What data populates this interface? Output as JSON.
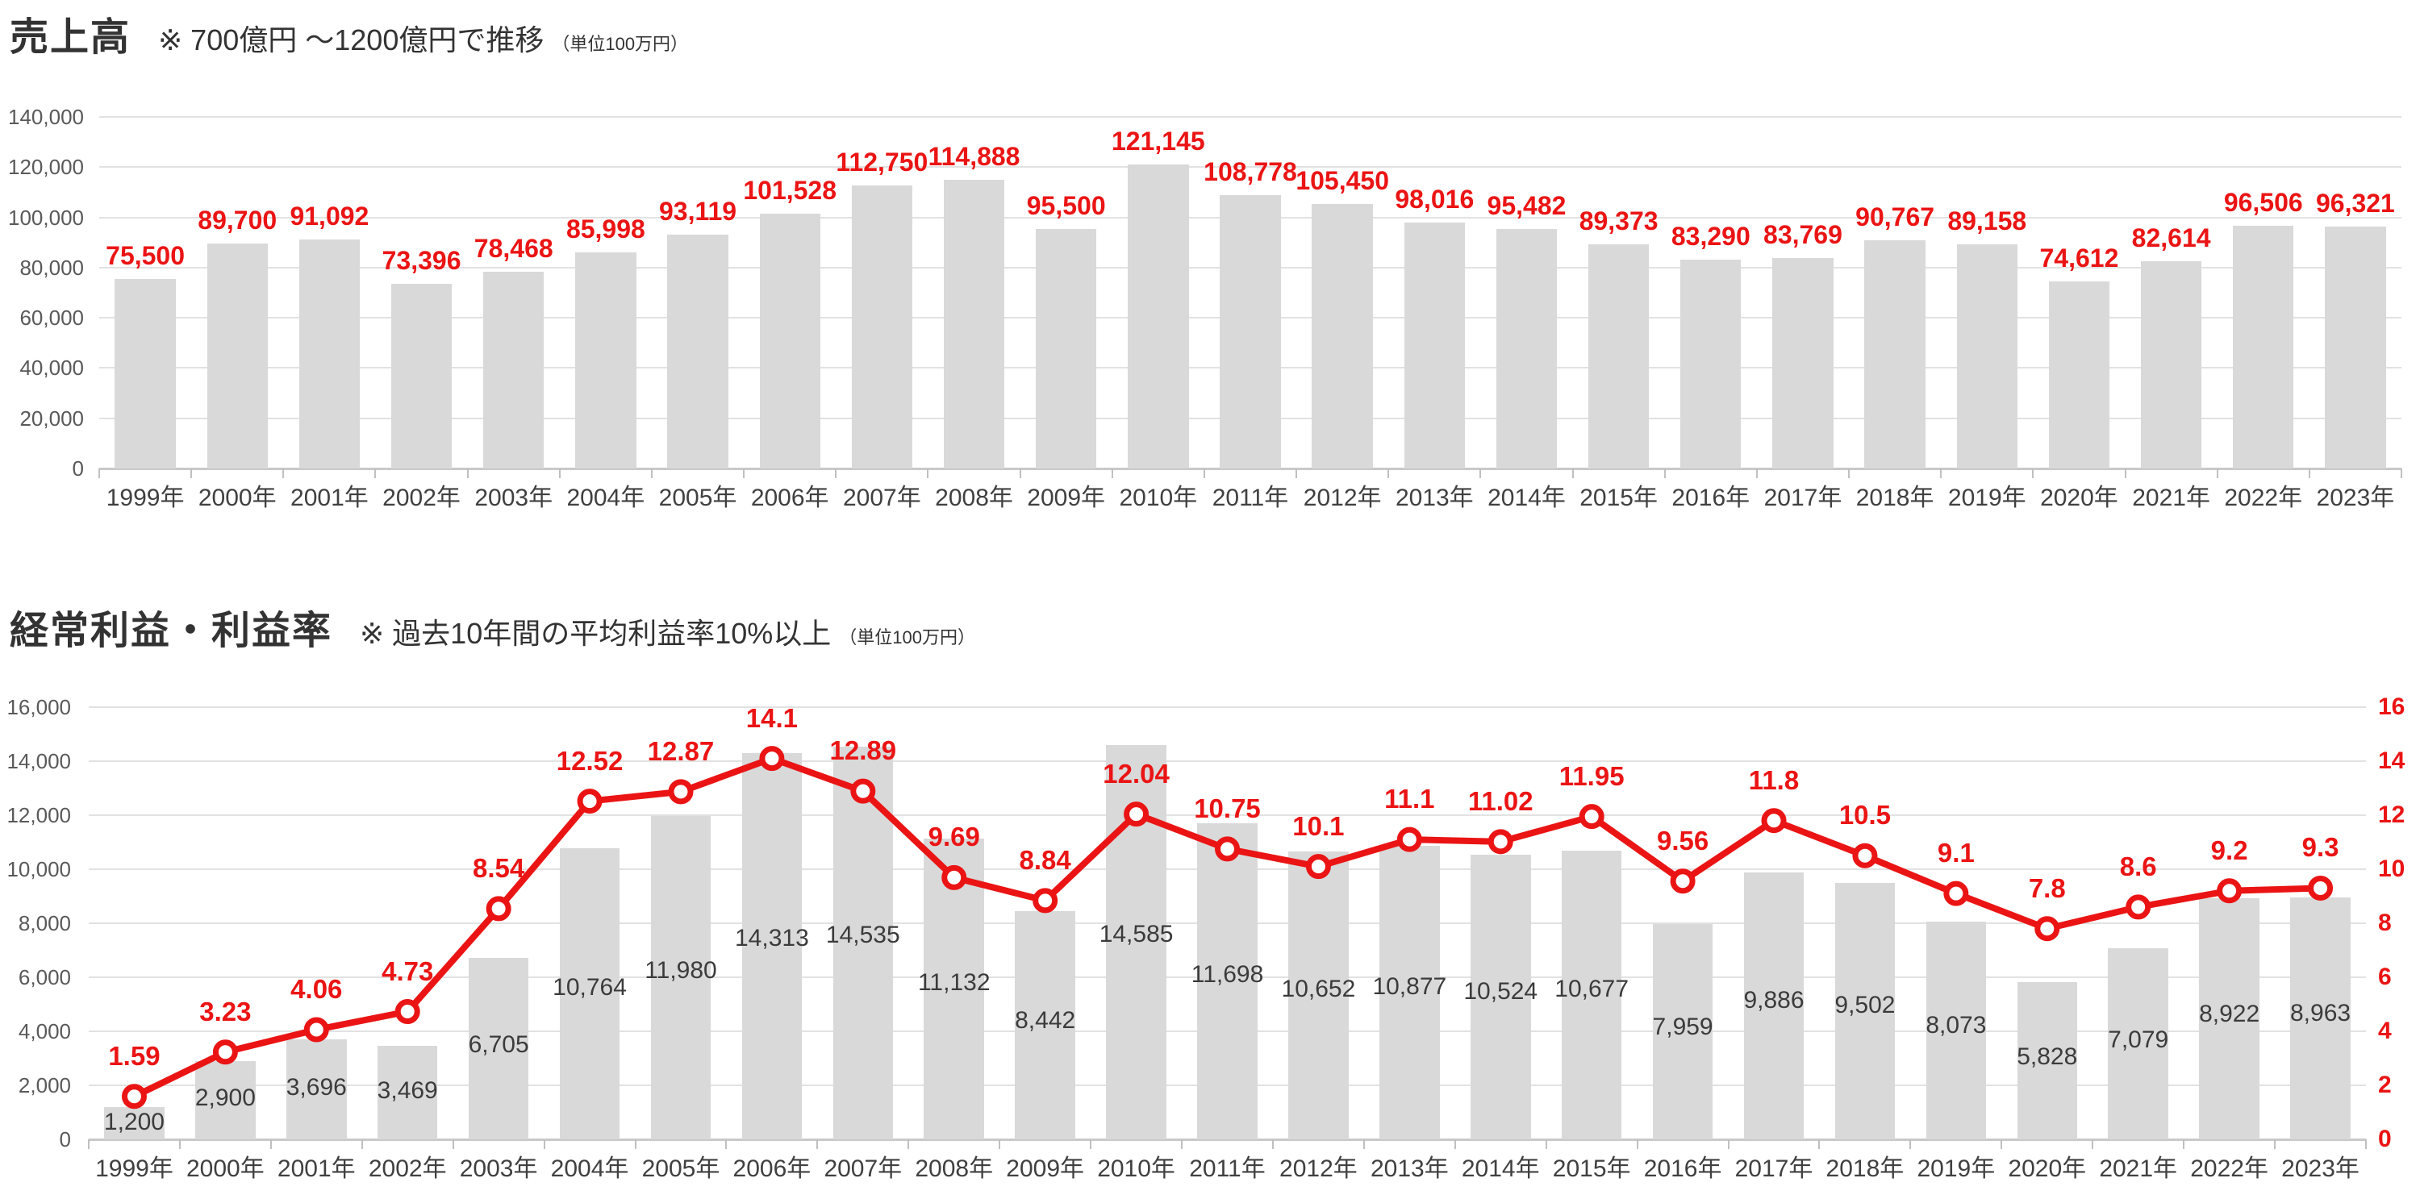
{
  "page": {
    "background": "#ffffff"
  },
  "colors": {
    "bar": "#d9d9d9",
    "accent_red": "#eb1414",
    "axis_text": "#595959",
    "x_label_text": "#404040",
    "bar_label_text": "#3b3b3b",
    "title_text": "#333333",
    "gridline": "#e2e2e2",
    "baseline": "#c9c9c9",
    "tick": "#c0c0c0",
    "marker_fill": "#ffffff"
  },
  "chart_data": [
    {
      "type": "bar",
      "title": "売上高",
      "subtitle": "※ 700億円 ～1200億円で推移",
      "unit_note": "（単位100万円）",
      "xlabel": "",
      "ylabel": "",
      "grid": true,
      "legend_position": "none",
      "ylim": [
        0,
        140000
      ],
      "ytick_step": 20000,
      "ytick_labels": [
        "0",
        "20,000",
        "40,000",
        "60,000",
        "80,000",
        "100,000",
        "120,000",
        "140,000"
      ],
      "categories": [
        "1999年",
        "2000年",
        "2001年",
        "2002年",
        "2003年",
        "2004年",
        "2005年",
        "2006年",
        "2007年",
        "2008年",
        "2009年",
        "2010年",
        "2011年",
        "2012年",
        "2013年",
        "2014年",
        "2015年",
        "2016年",
        "2017年",
        "2018年",
        "2019年",
        "2020年",
        "2021年",
        "2022年",
        "2023年"
      ],
      "values": [
        75500,
        89700,
        91092,
        73396,
        78468,
        85998,
        93119,
        101528,
        112750,
        114888,
        95500,
        121145,
        108778,
        105450,
        98016,
        95482,
        89373,
        83290,
        83769,
        90767,
        89158,
        74612,
        82614,
        96506,
        96321
      ],
      "value_labels": [
        "75,500",
        "89,700",
        "91,092",
        "73,396",
        "78,468",
        "85,998",
        "93,119",
        "101,528",
        "112,750",
        "114,888",
        "95,500",
        "121,145",
        "108,778",
        "105,450",
        "98,016",
        "95,482",
        "89,373",
        "83,290",
        "83,769",
        "90,767",
        "89,158",
        "74,612",
        "82,614",
        "96,506",
        "96,321"
      ],
      "data_label_position": "above",
      "data_label_color": "#eb1414"
    },
    {
      "type": "bar+line",
      "title": "経常利益・利益率",
      "subtitle": "※ 過去10年間の平均利益率10%以上",
      "unit_note": "（単位100万円）",
      "xlabel": "",
      "ylabel": "",
      "grid": true,
      "legend_position": "none",
      "ylim_left": [
        0,
        16000
      ],
      "ytick_step_left": 2000,
      "ytick_labels_left": [
        "0",
        "2,000",
        "4,000",
        "6,000",
        "8,000",
        "10,000",
        "12,000",
        "14,000",
        "16,000"
      ],
      "ylim_right": [
        0,
        16
      ],
      "ytick_step_right": 2,
      "ytick_labels_right": [
        "0",
        "2",
        "4",
        "6",
        "8",
        "10",
        "12",
        "14",
        "16"
      ],
      "categories": [
        "1999年",
        "2000年",
        "2001年",
        "2002年",
        "2003年",
        "2004年",
        "2005年",
        "2006年",
        "2007年",
        "2008年",
        "2009年",
        "2010年",
        "2011年",
        "2012年",
        "2013年",
        "2014年",
        "2015年",
        "2016年",
        "2017年",
        "2018年",
        "2019年",
        "2020年",
        "2021年",
        "2022年",
        "2023年"
      ],
      "series": [
        {
          "name": "経常利益",
          "type": "bar",
          "axis": "left",
          "values": [
            1200,
            2900,
            3696,
            3469,
            6705,
            10764,
            11980,
            14313,
            14535,
            11132,
            8442,
            14585,
            11698,
            10652,
            10877,
            10524,
            10677,
            7959,
            9886,
            9502,
            8073,
            5828,
            7079,
            8922,
            8963
          ],
          "value_labels": [
            "1,200",
            "2,900",
            "3,696",
            "3,469",
            "6,705",
            "10,764",
            "11,980",
            "14,313",
            "14,535",
            "11,132",
            "8,442",
            "14,585",
            "11,698",
            "10,652",
            "10,877",
            "10,524",
            "10,677",
            "7,959",
            "9,886",
            "9,502",
            "8,073",
            "5,828",
            "7,079",
            "8,922",
            "8,963"
          ],
          "data_label_position": "inside",
          "data_label_color": "#3b3b3b"
        },
        {
          "name": "利益率",
          "type": "line",
          "axis": "right",
          "values": [
            1.59,
            3.23,
            4.06,
            4.73,
            8.54,
            12.52,
            12.87,
            14.1,
            12.89,
            9.69,
            8.84,
            12.04,
            10.75,
            10.1,
            11.1,
            11.02,
            11.95,
            9.56,
            11.8,
            10.5,
            9.1,
            7.8,
            8.6,
            9.2,
            9.3
          ],
          "value_labels": [
            "1.59",
            "3.23",
            "4.06",
            "4.73",
            "8.54",
            "12.52",
            "12.87",
            "14.1",
            "12.89",
            "9.69",
            "8.84",
            "12.04",
            "10.75",
            "10.1",
            "11.1",
            "11.02",
            "11.95",
            "9.56",
            "11.8",
            "10.5",
            "9.1",
            "7.8",
            "8.6",
            "9.2",
            "9.3"
          ],
          "data_label_position": "above",
          "data_label_color": "#eb1414"
        }
      ]
    }
  ]
}
